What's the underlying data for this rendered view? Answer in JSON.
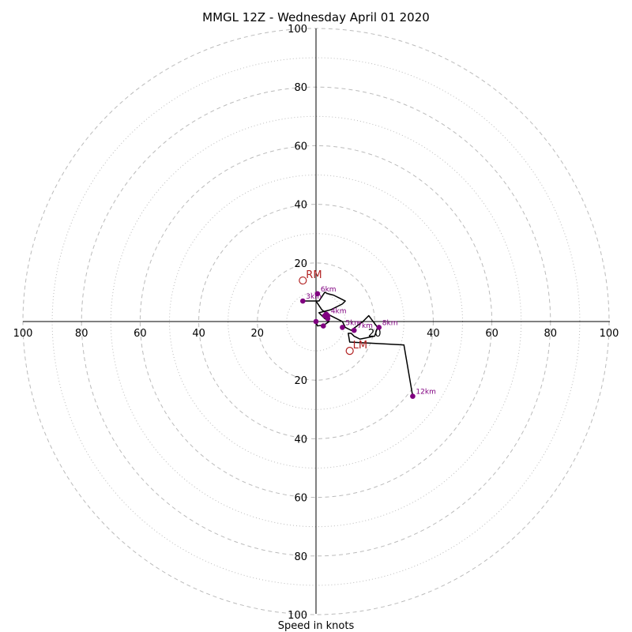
{
  "chart_data": {
    "type": "scatter",
    "title": "MMGL 12Z - Wednesday April 01 2020",
    "xlabel": "Speed in knots",
    "ylabel": "",
    "xlim": [
      -100,
      100
    ],
    "ylim": [
      -100,
      100
    ],
    "major_ring_values": [
      20,
      40,
      60,
      80,
      100
    ],
    "minor_ring_values": [
      10,
      30,
      50,
      70,
      90
    ],
    "x_ticks": [
      {
        "value": -100,
        "label": "100"
      },
      {
        "value": -80,
        "label": "80"
      },
      {
        "value": -60,
        "label": "60"
      },
      {
        "value": -40,
        "label": "40"
      },
      {
        "value": -20,
        "label": "20"
      },
      {
        "value": 20,
        "label": "20"
      },
      {
        "value": 40,
        "label": "40"
      },
      {
        "value": 60,
        "label": "60"
      },
      {
        "value": 80,
        "label": "80"
      },
      {
        "value": 100,
        "label": "100"
      }
    ],
    "y_ticks": [
      {
        "value": 100,
        "label": "100"
      },
      {
        "value": 80,
        "label": "80"
      },
      {
        "value": 60,
        "label": "60"
      },
      {
        "value": 40,
        "label": "40"
      },
      {
        "value": 20,
        "label": "20"
      },
      {
        "value": -20,
        "label": "20"
      },
      {
        "value": -40,
        "label": "40"
      },
      {
        "value": -60,
        "label": "60"
      },
      {
        "value": -80,
        "label": "80"
      },
      {
        "value": -100,
        "label": "100"
      }
    ],
    "hodograph": {
      "x": [
        0,
        0.5,
        2.5,
        3,
        4.5,
        3,
        2,
        1,
        5,
        9,
        10,
        8,
        6,
        4,
        3,
        1,
        -4.5,
        0,
        2,
        4,
        7,
        9,
        10,
        12,
        16,
        18,
        21,
        20,
        15,
        13,
        12,
        11,
        11.5,
        30,
        33
      ],
      "y": [
        0,
        -1.5,
        -1.2,
        -1,
        0,
        1,
        2,
        3,
        4,
        6,
        7,
        8,
        9,
        9.5,
        10,
        7,
        7,
        7,
        4,
        2.5,
        1,
        0,
        -2,
        -3,
        0,
        2,
        -2,
        -5,
        -6,
        -5,
        -4,
        -4,
        -7,
        -8,
        -25.5
      ]
    },
    "labeled_points": [
      {
        "x": 0,
        "y": 0,
        "label": "",
        "label_visible": false
      },
      {
        "x": 2.5,
        "y": -1.5,
        "label": "",
        "label_visible": false
      },
      {
        "x": 3,
        "y": 2,
        "label": "",
        "label_visible": false
      },
      {
        "x": 4,
        "y": 1,
        "label": "",
        "label_visible": false
      },
      {
        "x": 3.5,
        "y": 2.5,
        "label": "",
        "label_visible": false
      },
      {
        "x": -4.5,
        "y": 7,
        "label": "3km",
        "label_visible": true
      },
      {
        "x": 4,
        "y": 2,
        "label": "4km",
        "label_visible": true
      },
      {
        "x": 9,
        "y": -2,
        "label": "5km",
        "label_visible": true
      },
      {
        "x": 0.5,
        "y": 9.5,
        "label": "6km",
        "label_visible": true
      },
      {
        "x": 13,
        "y": -3,
        "label": "7km",
        "label_visible": true
      },
      {
        "x": 21.5,
        "y": -2,
        "label": "8km",
        "label_visible": true
      },
      {
        "x": 33,
        "y": -25.5,
        "label": "12km",
        "label_visible": true
      }
    ],
    "storm_motions": [
      {
        "label": "RM",
        "x": -4.5,
        "y": 14
      },
      {
        "label": "LM",
        "x": 11.5,
        "y": -10
      }
    ],
    "colors": {
      "line": "#000000",
      "points": "#800080",
      "point_labels": "#800080",
      "storm_motion": "#b22222",
      "rings": "#bbbbbb",
      "axes": "#000000"
    },
    "grid": true
  }
}
